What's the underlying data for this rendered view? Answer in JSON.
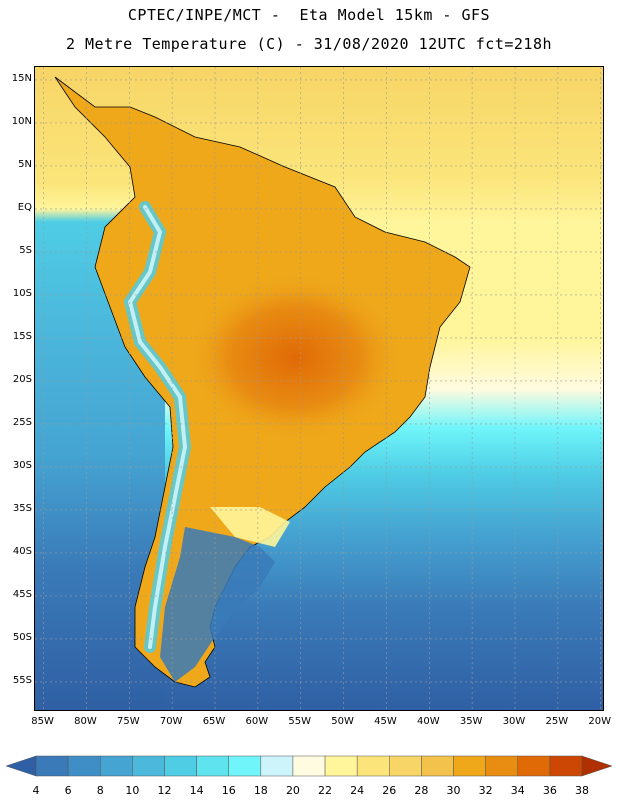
{
  "header": {
    "line1": "CPTEC/INPE/MCT -  Eta Model 15km - GFS",
    "line2": "2 Metre Temperature (C) - 31/08/2020 12UTC fct=218h"
  },
  "map": {
    "lat_labels": [
      "15N",
      "10N",
      "5N",
      "EQ",
      "5S",
      "10S",
      "15S",
      "20S",
      "25S",
      "30S",
      "35S",
      "40S",
      "45S",
      "50S",
      "55S"
    ],
    "lon_labels": [
      "85W",
      "80W",
      "75W",
      "70W",
      "65W",
      "60W",
      "55W",
      "50W",
      "45W",
      "40W",
      "35W",
      "30W",
      "25W",
      "20W"
    ],
    "extent": {
      "lon_min": -86,
      "lon_max": -19.5,
      "lat_max": 16.5,
      "lat_min": -58.5
    }
  },
  "legend": {
    "labels": [
      "4",
      "6",
      "8",
      "10",
      "12",
      "14",
      "16",
      "18",
      "20",
      "22",
      "24",
      "26",
      "28",
      "30",
      "32",
      "34",
      "36",
      "38"
    ],
    "colors": [
      "#2f5fa4",
      "#3a7ab8",
      "#3f8fc6",
      "#45a4d2",
      "#4bb8dc",
      "#4fcde5",
      "#5ee3ef",
      "#6ff5fa",
      "#cdf3fb",
      "#fffbe0",
      "#fff59a",
      "#fbe57a",
      "#f7d566",
      "#f2c24c",
      "#efa81a",
      "#e88c12",
      "#e06a06",
      "#cc4604",
      "#b03002"
    ]
  }
}
